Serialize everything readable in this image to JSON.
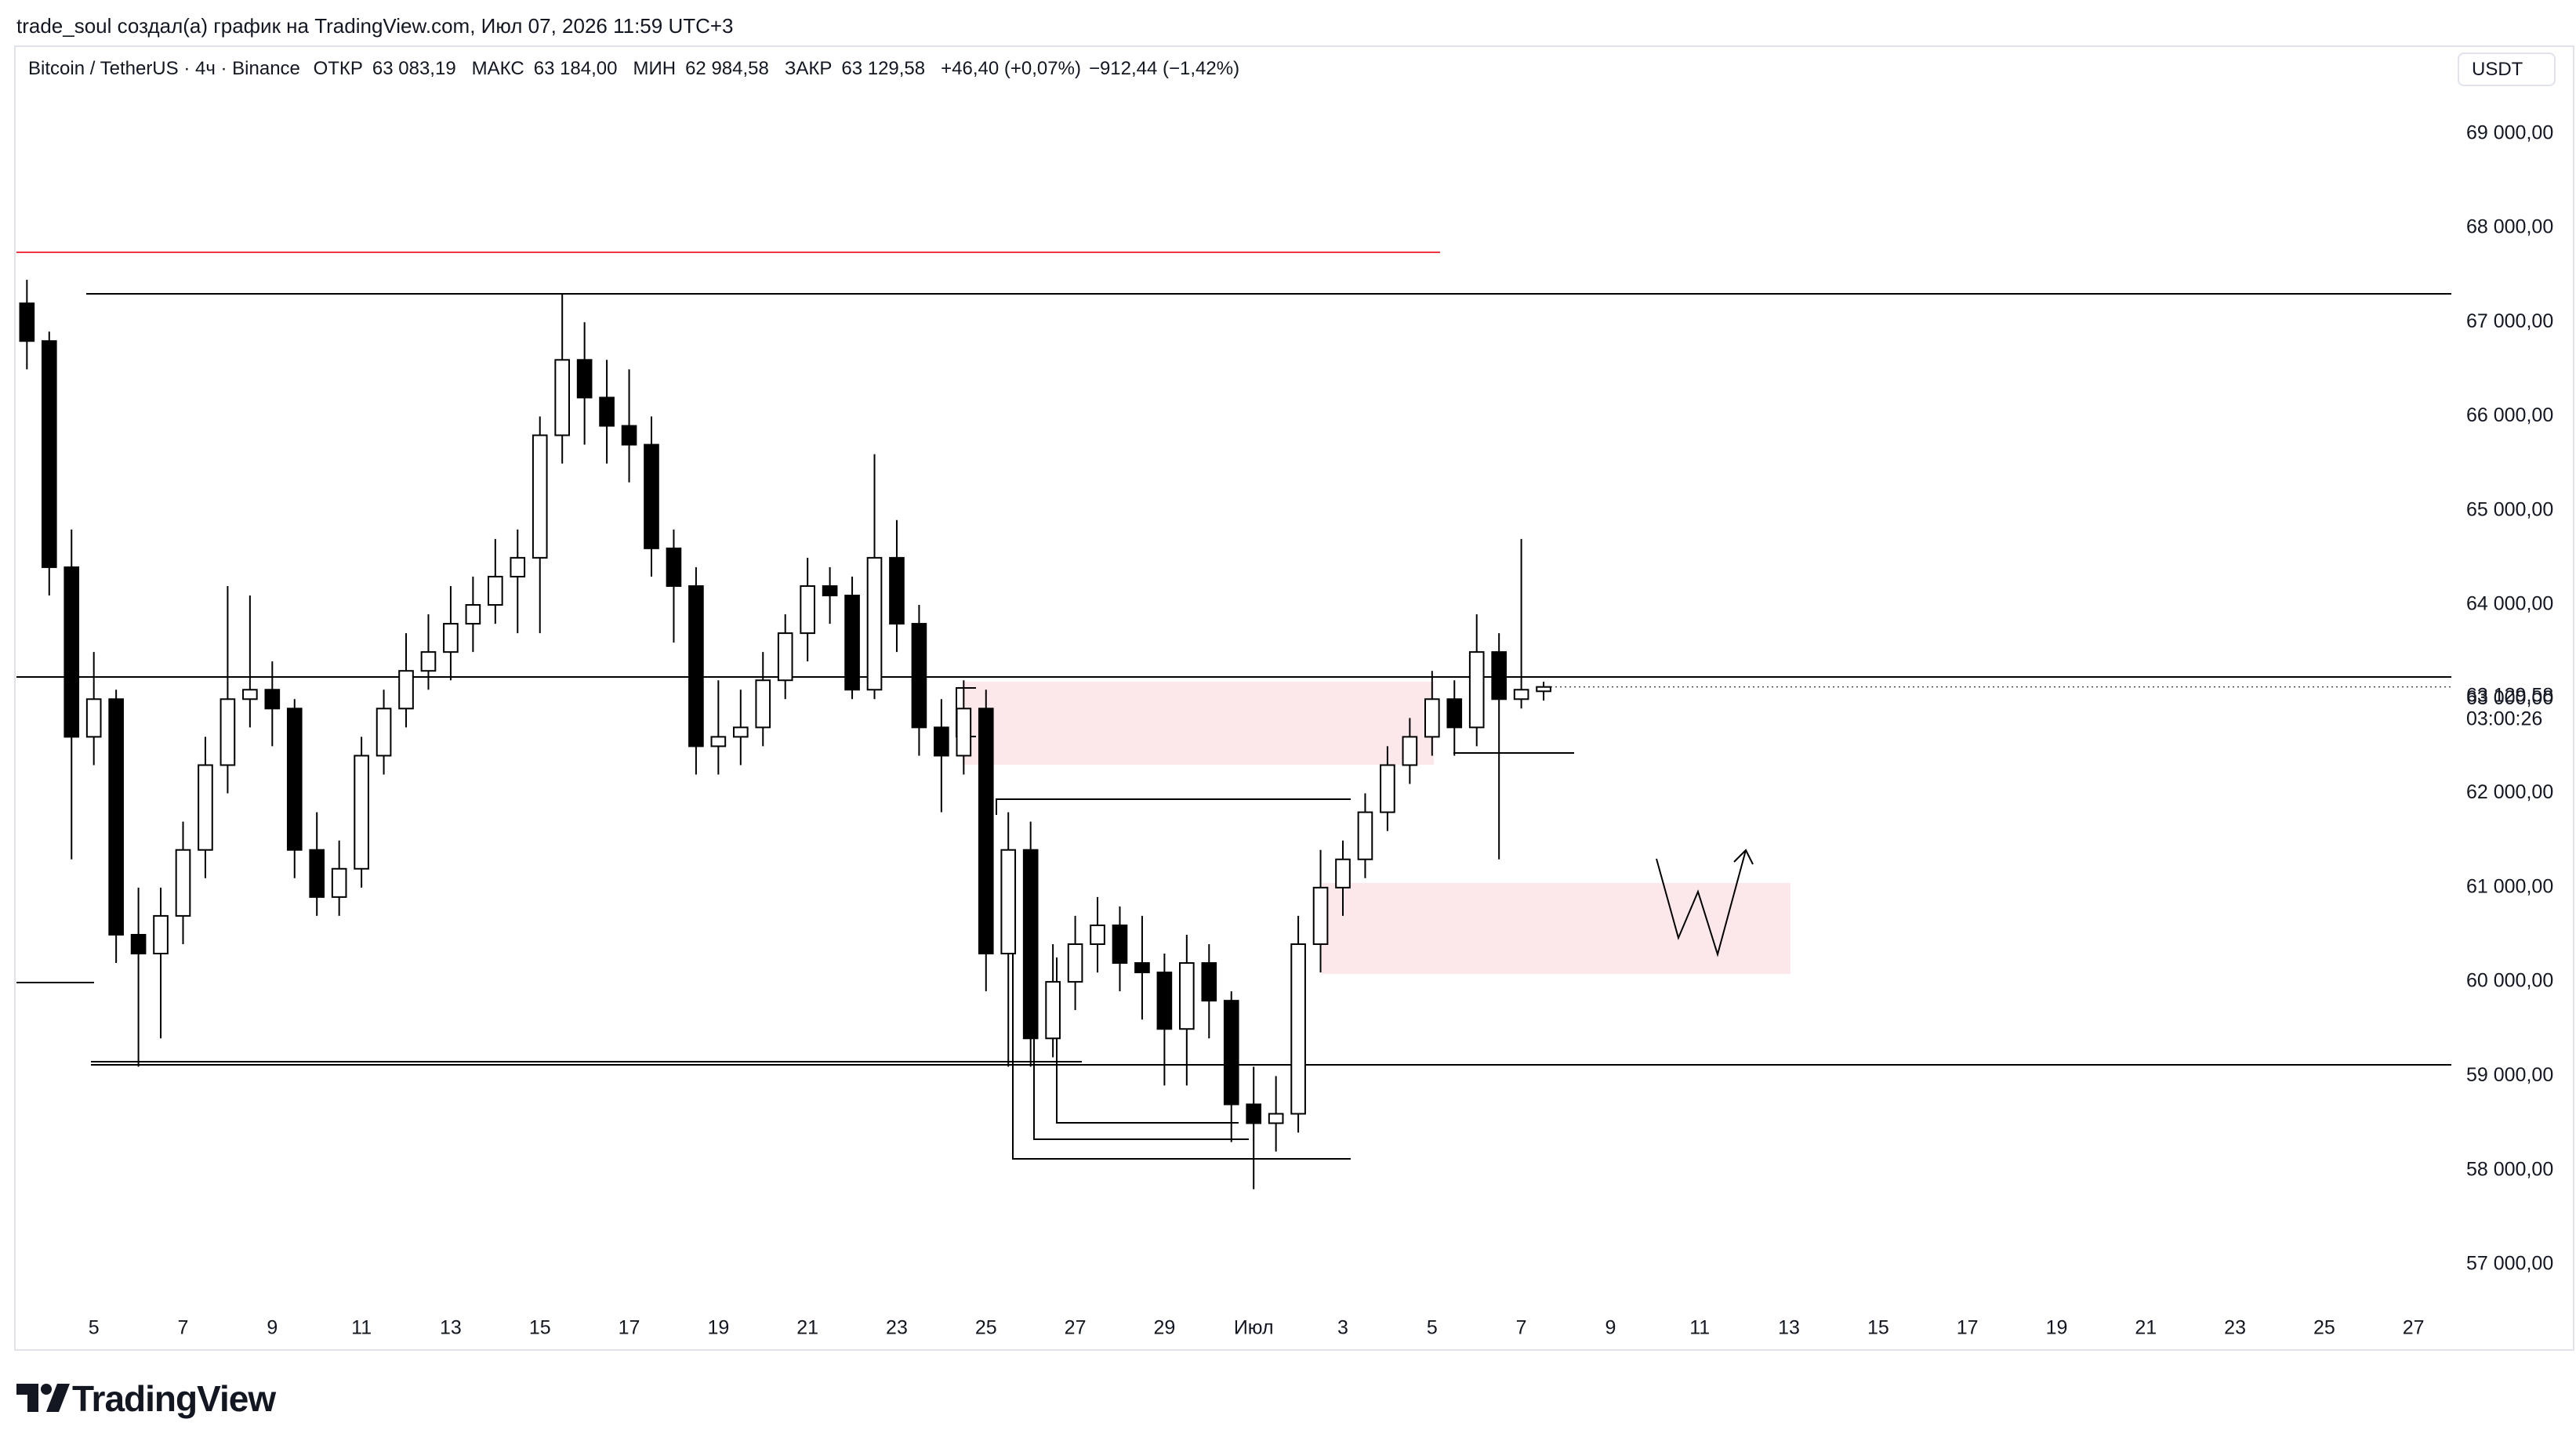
{
  "header": {
    "text": "trade_soul создал(а) график на TradingView.com, Июл 07, 2026 11:59 UTC+3"
  },
  "chart_data": {
    "type": "candlestick",
    "symbol": "Bitcoin / TetherUS · 4ч · Binance",
    "ohlc_legend": [
      {
        "label": "ОТКР",
        "value": "63 083,19"
      },
      {
        "label": "МАКС",
        "value": "63 184,00"
      },
      {
        "label": "МИН",
        "value": "62 984,58"
      },
      {
        "label": "ЗАКР",
        "value": "63 129,58"
      }
    ],
    "change": "+46,40 (+0,07%)",
    "change_long": "−912,44 (−1,42%)",
    "currency": "USDT",
    "open": [
      67200,
      66800,
      64400,
      62600,
      63000,
      60500,
      60300,
      60700,
      61400,
      62300,
      63000,
      63100,
      62900,
      61400,
      60900,
      61200,
      62400,
      62900,
      63300,
      63500,
      63800,
      64000,
      64300,
      64500,
      65800,
      66600,
      66200,
      65900,
      65700,
      64600,
      64200,
      62500,
      62600,
      62700,
      63200,
      63700,
      64200,
      64100,
      63100,
      64500,
      63800,
      62700,
      62400,
      62900,
      60300,
      61400,
      59400,
      60000,
      60400,
      60600,
      60200,
      60100,
      59500,
      60200,
      59800,
      58700,
      58500,
      58600,
      60400,
      61000,
      61300,
      61800,
      62300,
      62600,
      63000,
      62700,
      63500,
      63000,
      63083.19
    ],
    "high": [
      67450,
      66900,
      64800,
      63500,
      63100,
      61000,
      61000,
      61700,
      62600,
      64200,
      64100,
      63400,
      63000,
      61800,
      61500,
      62600,
      63100,
      63700,
      63900,
      64200,
      64300,
      64700,
      64800,
      66000,
      67300,
      67000,
      66600,
      66500,
      66000,
      64800,
      64400,
      63200,
      63100,
      63500,
      63900,
      64500,
      64400,
      64300,
      65600,
      64900,
      64000,
      63000,
      63200,
      63100,
      61800,
      61700,
      60400,
      60700,
      60900,
      60800,
      60700,
      60300,
      60500,
      60400,
      59900,
      59100,
      59000,
      60700,
      61400,
      61500,
      62000,
      62500,
      62800,
      63300,
      63200,
      63900,
      63700,
      64700,
      63184
    ],
    "low": [
      66500,
      64100,
      61300,
      62300,
      60200,
      59100,
      59400,
      60400,
      61100,
      62000,
      62700,
      62500,
      61100,
      60700,
      60700,
      61000,
      62200,
      62700,
      63100,
      63200,
      63500,
      63800,
      63700,
      63700,
      65500,
      65700,
      65500,
      65300,
      64300,
      63600,
      62200,
      62200,
      62300,
      62500,
      63000,
      63400,
      63800,
      63000,
      63000,
      63500,
      62400,
      61800,
      62200,
      59900,
      59100,
      59100,
      59200,
      59700,
      60100,
      59900,
      59600,
      58900,
      58900,
      59400,
      58300,
      57800,
      58200,
      58400,
      60100,
      60700,
      61100,
      61600,
      62100,
      62400,
      62400,
      62500,
      61300,
      62900,
      62984.58
    ],
    "close": [
      66800,
      64400,
      62600,
      63000,
      60500,
      60300,
      60700,
      61400,
      62300,
      63000,
      63100,
      62900,
      61400,
      60900,
      61200,
      62400,
      62900,
      63300,
      63500,
      63800,
      64000,
      64300,
      64500,
      65800,
      66600,
      66200,
      65900,
      65700,
      64600,
      64200,
      62500,
      62600,
      62700,
      63200,
      63700,
      64200,
      64100,
      63100,
      64500,
      63800,
      62700,
      62400,
      62900,
      60300,
      61400,
      59400,
      60000,
      60400,
      60600,
      60200,
      60100,
      59500,
      60200,
      59800,
      58700,
      58500,
      58600,
      60400,
      61000,
      61300,
      61800,
      62300,
      62600,
      63000,
      62700,
      63500,
      63000,
      63100,
      63129.58
    ],
    "up_color": "#ffffff",
    "down_color": "#000000",
    "outline_color": "#000000",
    "xlim": [
      -0.75,
      108.1
    ],
    "xticks": [
      {
        "value": 3,
        "label": "5"
      },
      {
        "value": 7,
        "label": "7"
      },
      {
        "value": 11,
        "label": "9"
      },
      {
        "value": 15,
        "label": "11"
      },
      {
        "value": 19,
        "label": "13"
      },
      {
        "value": 23,
        "label": "15"
      },
      {
        "value": 27,
        "label": "17"
      },
      {
        "value": 31,
        "label": "19"
      },
      {
        "value": 35,
        "label": "21"
      },
      {
        "value": 39,
        "label": "23"
      },
      {
        "value": 43,
        "label": "25"
      },
      {
        "value": 47,
        "label": "27"
      },
      {
        "value": 51,
        "label": "29"
      },
      {
        "value": 55,
        "label": "Июл"
      },
      {
        "value": 59,
        "label": "3"
      },
      {
        "value": 63,
        "label": "5"
      },
      {
        "value": 67,
        "label": "7"
      },
      {
        "value": 71,
        "label": "9"
      },
      {
        "value": 75,
        "label": "11"
      },
      {
        "value": 79,
        "label": "13"
      },
      {
        "value": 83,
        "label": "15"
      },
      {
        "value": 87,
        "label": "17"
      },
      {
        "value": 91,
        "label": "19"
      },
      {
        "value": 95,
        "label": "21"
      },
      {
        "value": 99,
        "label": "23"
      },
      {
        "value": 103,
        "label": "25"
      },
      {
        "value": 107,
        "label": "27"
      }
    ],
    "ylim": [
      56700,
      69920
    ],
    "yticks": [
      {
        "value": 57000,
        "label": "57 000,00"
      },
      {
        "value": 58000,
        "label": "58 000,00"
      },
      {
        "value": 59000,
        "label": "59 000,00"
      },
      {
        "value": 60000,
        "label": "60 000,00"
      },
      {
        "value": 61000,
        "label": "61 000,00"
      },
      {
        "value": 62000,
        "label": "62 000,00"
      },
      {
        "value": 63000,
        "label": "63 000,00"
      },
      {
        "value": 64000,
        "label": "64 000,00"
      },
      {
        "value": 65000,
        "label": "65 000,00"
      },
      {
        "value": 66000,
        "label": "66 000,00"
      },
      {
        "value": 67000,
        "label": "67 000,00"
      },
      {
        "value": 68000,
        "label": "68 000,00"
      },
      {
        "value": 69000,
        "label": "69 000,00"
      }
    ],
    "last_price": {
      "value": 63129.58,
      "label": "63 129,58"
    },
    "countdown": "03:00:26",
    "grid": false
  },
  "footer": {
    "logo": "TradingView"
  }
}
